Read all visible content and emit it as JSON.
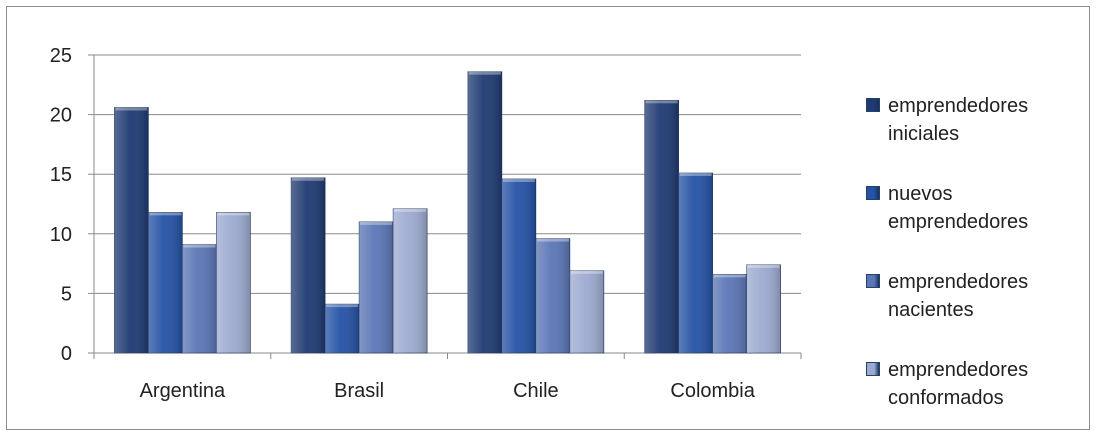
{
  "chart_data": {
    "type": "bar",
    "title": "",
    "xlabel": "",
    "ylabel": "",
    "ylim": [
      0,
      25
    ],
    "yticks": [
      0,
      5,
      10,
      15,
      20,
      25
    ],
    "grid": true,
    "legend_position": "right",
    "categories": [
      "Argentina",
      "Brasil",
      "Chile",
      "Colombia"
    ],
    "series": [
      {
        "name": "emprendedores iniciales",
        "color": "#1f3a72",
        "values": [
          20.6,
          14.7,
          23.6,
          21.2
        ]
      },
      {
        "name": "nuevos emprendedores",
        "color": "#2452a4",
        "values": [
          11.8,
          4.1,
          14.6,
          15.1
        ]
      },
      {
        "name": "emprendedores nacientes",
        "color": "#5b76b6",
        "values": [
          9.1,
          11.0,
          9.6,
          6.6
        ]
      },
      {
        "name": "emprendedores conformados",
        "color": "#9daad0",
        "values": [
          11.8,
          12.1,
          6.9,
          7.4
        ]
      }
    ]
  }
}
